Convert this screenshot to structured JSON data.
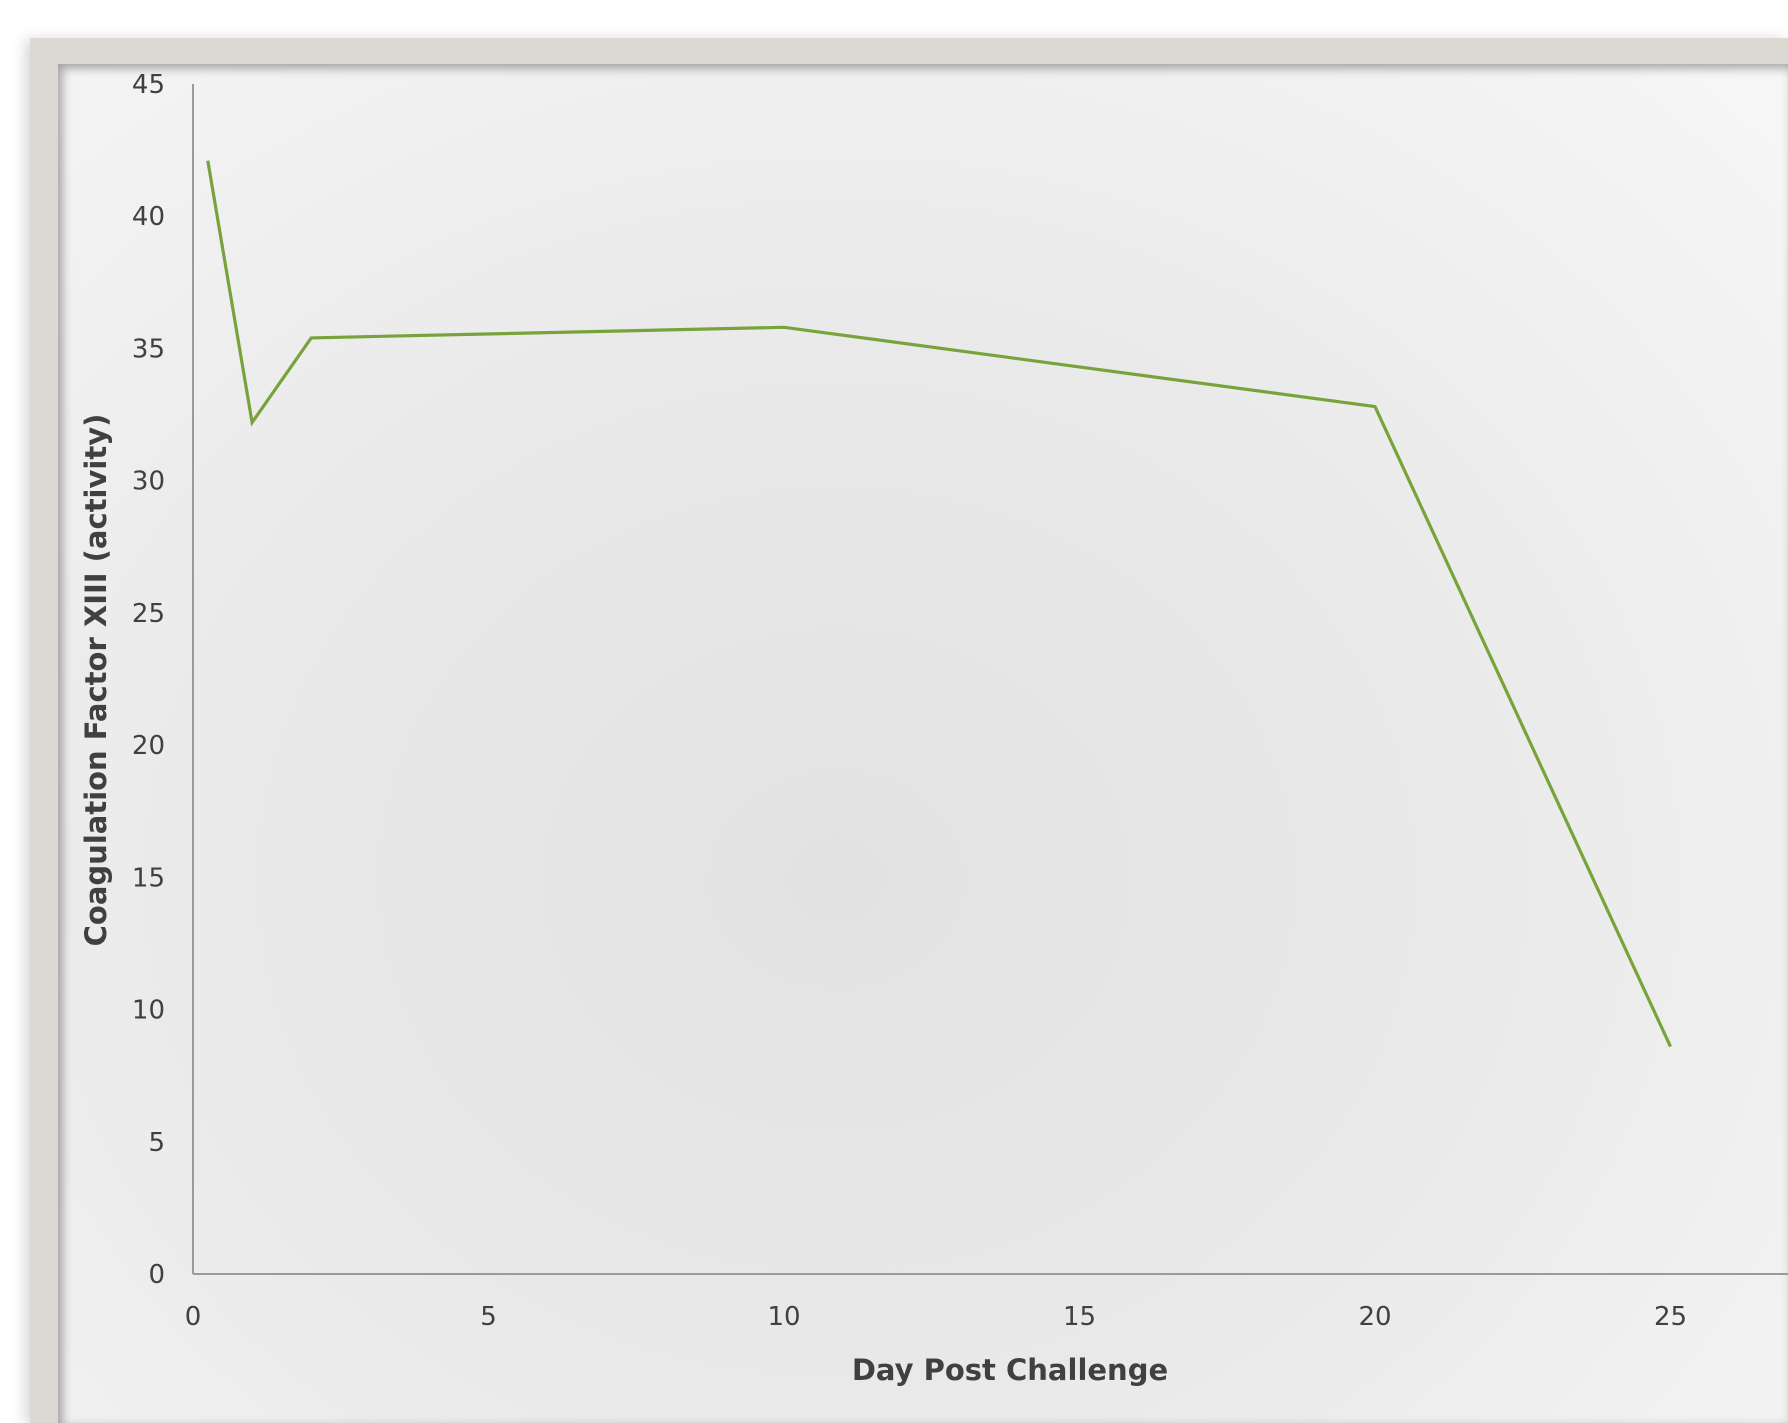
{
  "chart_data": {
    "type": "line",
    "xlabel": "Day Post Challenge",
    "ylabel": "Coagulation Factor XIII (activity)",
    "xlim": [
      0,
      30
    ],
    "ylim": [
      0,
      45
    ],
    "x_ticks": [
      "0",
      "5",
      "10",
      "15",
      "20",
      "25"
    ],
    "y_ticks": [
      "0",
      "5",
      "10",
      "15",
      "20",
      "25",
      "30",
      "35",
      "40",
      "45"
    ],
    "series": [
      {
        "color": "#77a33a",
        "x": [
          0.25,
          1,
          2,
          10,
          20,
          25
        ],
        "y": [
          42.1,
          32.2,
          35.4,
          35.8,
          32.8,
          8.6
        ]
      }
    ],
    "grid": false,
    "legend": "none"
  }
}
